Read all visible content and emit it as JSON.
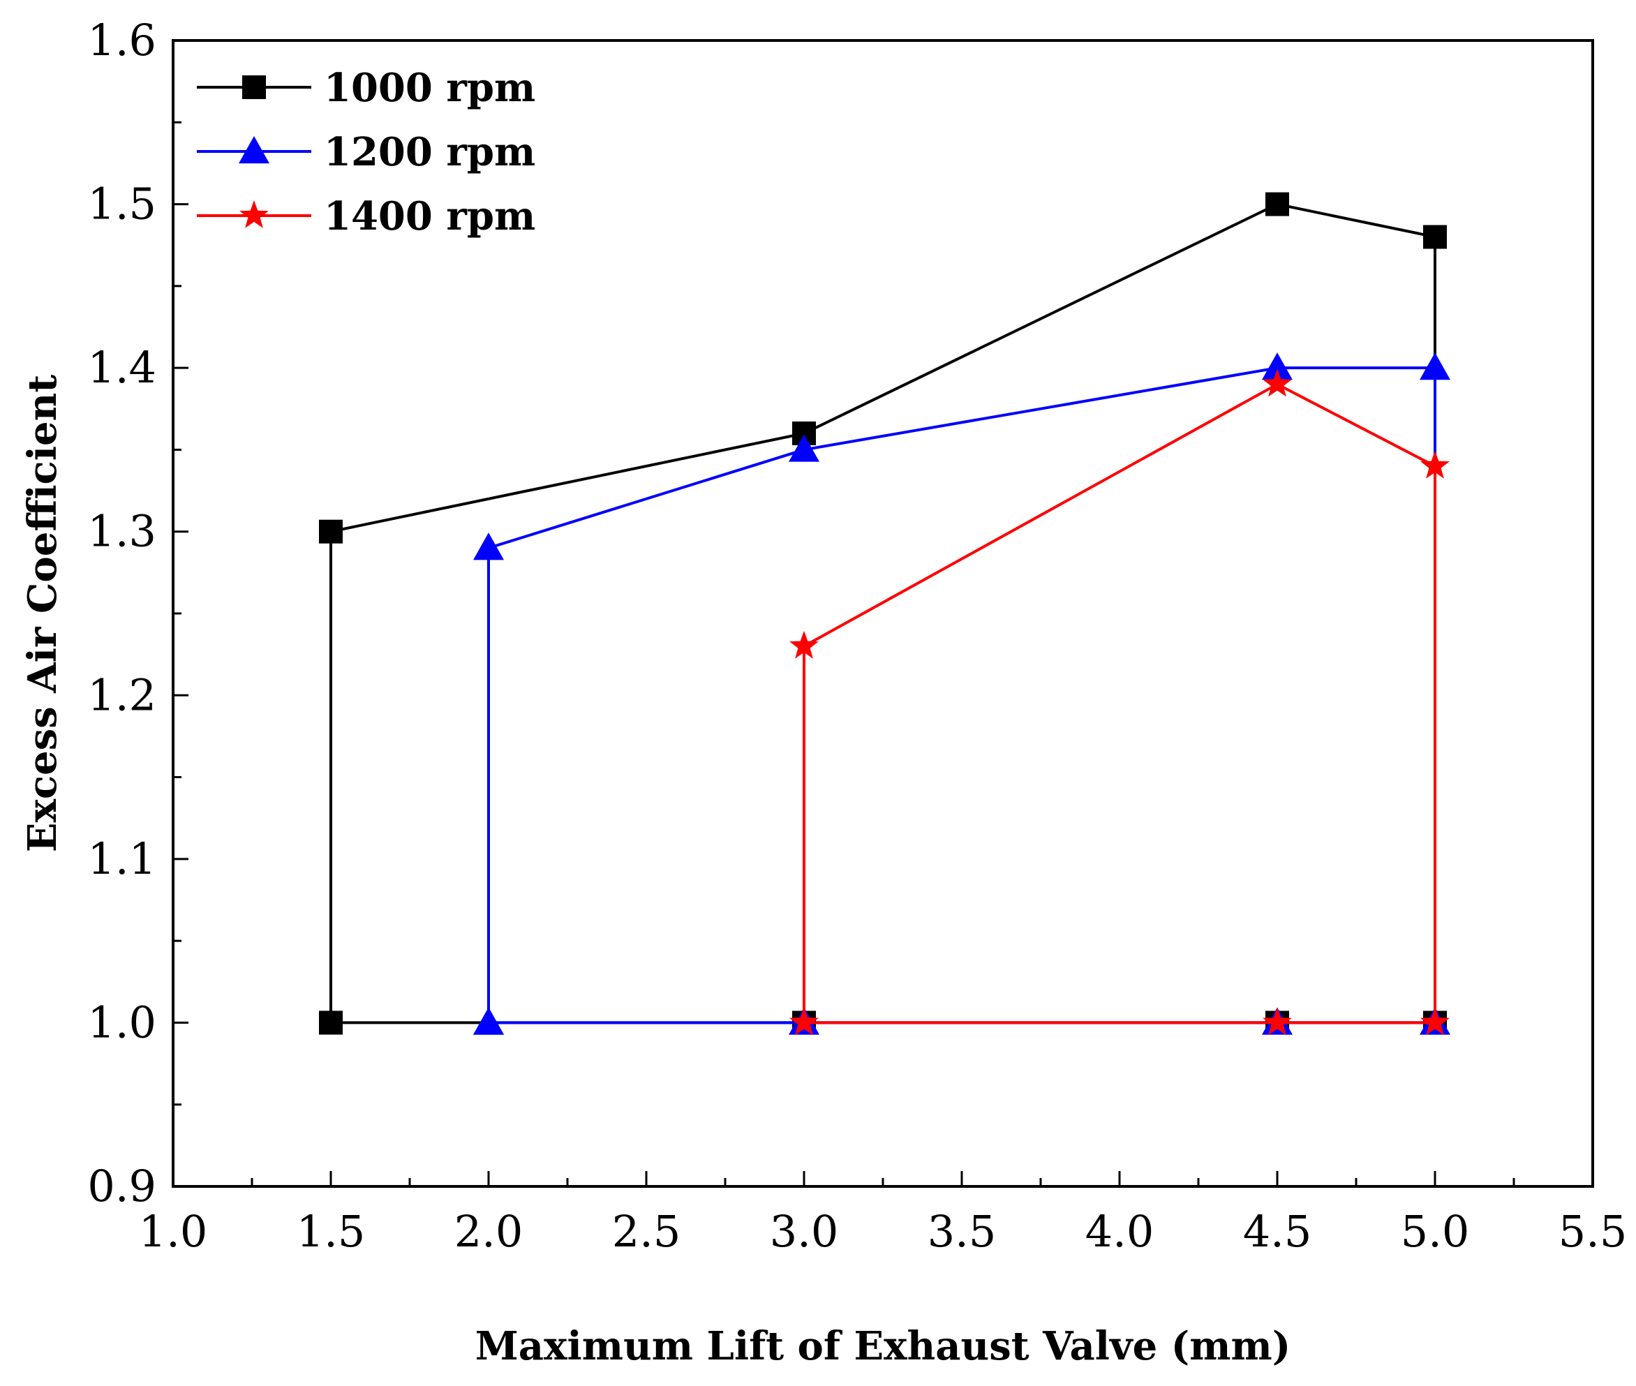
{
  "chart_data": {
    "type": "line",
    "title": "",
    "xlabel": "Maximum Lift of Exhaust Valve (mm)",
    "ylabel": "Excess Air Coefficient",
    "xlim": [
      1.0,
      5.5
    ],
    "ylim": [
      0.9,
      1.6
    ],
    "x_ticks": [
      "1.0",
      "1.5",
      "2.0",
      "2.5",
      "3.0",
      "3.5",
      "4.0",
      "4.5",
      "5.0",
      "5.5"
    ],
    "x_tick_values": [
      1.0,
      1.5,
      2.0,
      2.5,
      3.0,
      3.5,
      4.0,
      4.5,
      5.0,
      5.5
    ],
    "y_ticks": [
      "0.9",
      "1.0",
      "1.1",
      "1.2",
      "1.3",
      "1.4",
      "1.5",
      "1.6"
    ],
    "y_tick_values": [
      0.9,
      1.0,
      1.1,
      1.2,
      1.3,
      1.4,
      1.5,
      1.6
    ],
    "grid": false,
    "legend_position": "top-left",
    "series": [
      {
        "name": "1000 rpm",
        "color": "#000000",
        "marker": "square",
        "points": [
          [
            1.5,
            1.0
          ],
          [
            1.5,
            1.3
          ],
          [
            3.0,
            1.36
          ],
          [
            4.5,
            1.5
          ],
          [
            5.0,
            1.48
          ],
          [
            5.0,
            1.0
          ],
          [
            4.5,
            1.0
          ],
          [
            3.0,
            1.0
          ],
          [
            1.5,
            1.0
          ]
        ]
      },
      {
        "name": "1200 rpm",
        "color": "#0000ff",
        "marker": "triangle",
        "points": [
          [
            2.0,
            1.0
          ],
          [
            2.0,
            1.29
          ],
          [
            3.0,
            1.35
          ],
          [
            4.5,
            1.4
          ],
          [
            5.0,
            1.4
          ],
          [
            5.0,
            1.0
          ],
          [
            4.5,
            1.0
          ],
          [
            3.0,
            1.0
          ],
          [
            2.0,
            1.0
          ]
        ]
      },
      {
        "name": "1400 rpm",
        "color": "#ff0000",
        "marker": "star",
        "points": [
          [
            3.0,
            1.0
          ],
          [
            3.0,
            1.23
          ],
          [
            4.5,
            1.39
          ],
          [
            5.0,
            1.34
          ],
          [
            5.0,
            1.0
          ],
          [
            4.5,
            1.0
          ],
          [
            3.0,
            1.0
          ]
        ]
      }
    ]
  }
}
